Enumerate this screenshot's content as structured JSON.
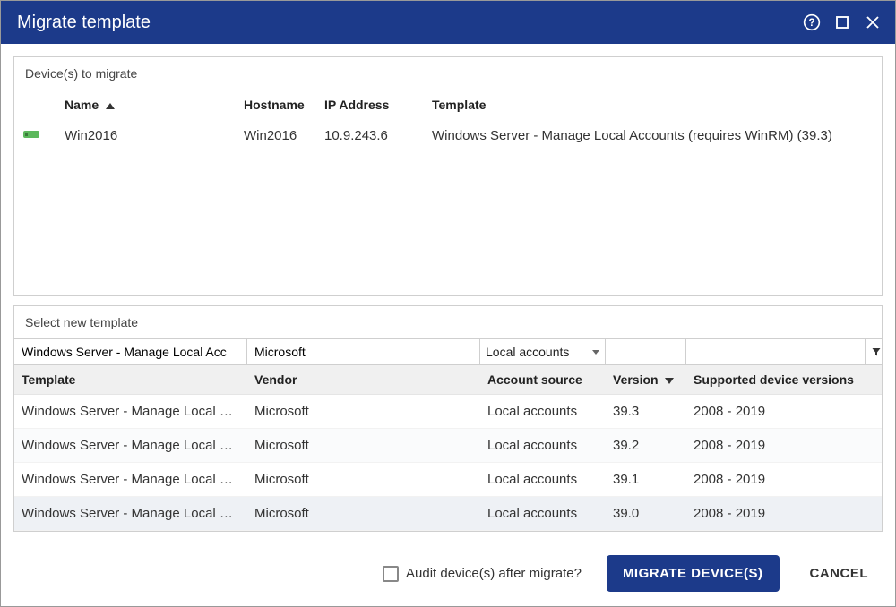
{
  "colors": {
    "titlebar_bg": "#1c3a8a",
    "primary_button_bg": "#1c3a8a",
    "border": "#cfcfcf",
    "header_row_bg": "#f0f0f0"
  },
  "dialog": {
    "title": "Migrate template"
  },
  "devices_panel": {
    "title": "Device(s) to migrate",
    "columns": {
      "name": "Name",
      "hostname": "Hostname",
      "ip": "IP Address",
      "template": "Template"
    },
    "sort": {
      "column": "name",
      "direction": "asc"
    },
    "rows": [
      {
        "icon": "server-icon",
        "name": "Win2016",
        "hostname": "Win2016",
        "ip": "10.9.243.6",
        "template": "Windows Server - Manage Local Accounts (requires WinRM) (39.3)"
      }
    ]
  },
  "templates_panel": {
    "title": "Select new template",
    "filters": {
      "template": "Windows Server - Manage Local Acc",
      "vendor": "Microsoft",
      "account_source": "Local accounts",
      "version": "",
      "supported": ""
    },
    "columns": {
      "template": "Template",
      "vendor": "Vendor",
      "account_source": "Account source",
      "version": "Version",
      "supported": "Supported device versions"
    },
    "sort": {
      "column": "version",
      "direction": "desc"
    },
    "rows": [
      {
        "template": "Windows Server - Manage Local …",
        "vendor": "Microsoft",
        "account_source": "Local accounts",
        "version": "39.3",
        "supported": "2008 - 2019",
        "selected": false
      },
      {
        "template": "Windows Server - Manage Local …",
        "vendor": "Microsoft",
        "account_source": "Local accounts",
        "version": "39.2",
        "supported": "2008 - 2019",
        "selected": false
      },
      {
        "template": "Windows Server - Manage Local …",
        "vendor": "Microsoft",
        "account_source": "Local accounts",
        "version": "39.1",
        "supported": "2008 - 2019",
        "selected": false
      },
      {
        "template": "Windows Server - Manage Local …",
        "vendor": "Microsoft",
        "account_source": "Local accounts",
        "version": "39.0",
        "supported": "2008 - 2019",
        "selected": true
      }
    ]
  },
  "footer": {
    "audit_label": "Audit device(s) after migrate?",
    "audit_checked": false,
    "migrate_label": "MIGRATE DEVICE(S)",
    "cancel_label": "CANCEL"
  }
}
